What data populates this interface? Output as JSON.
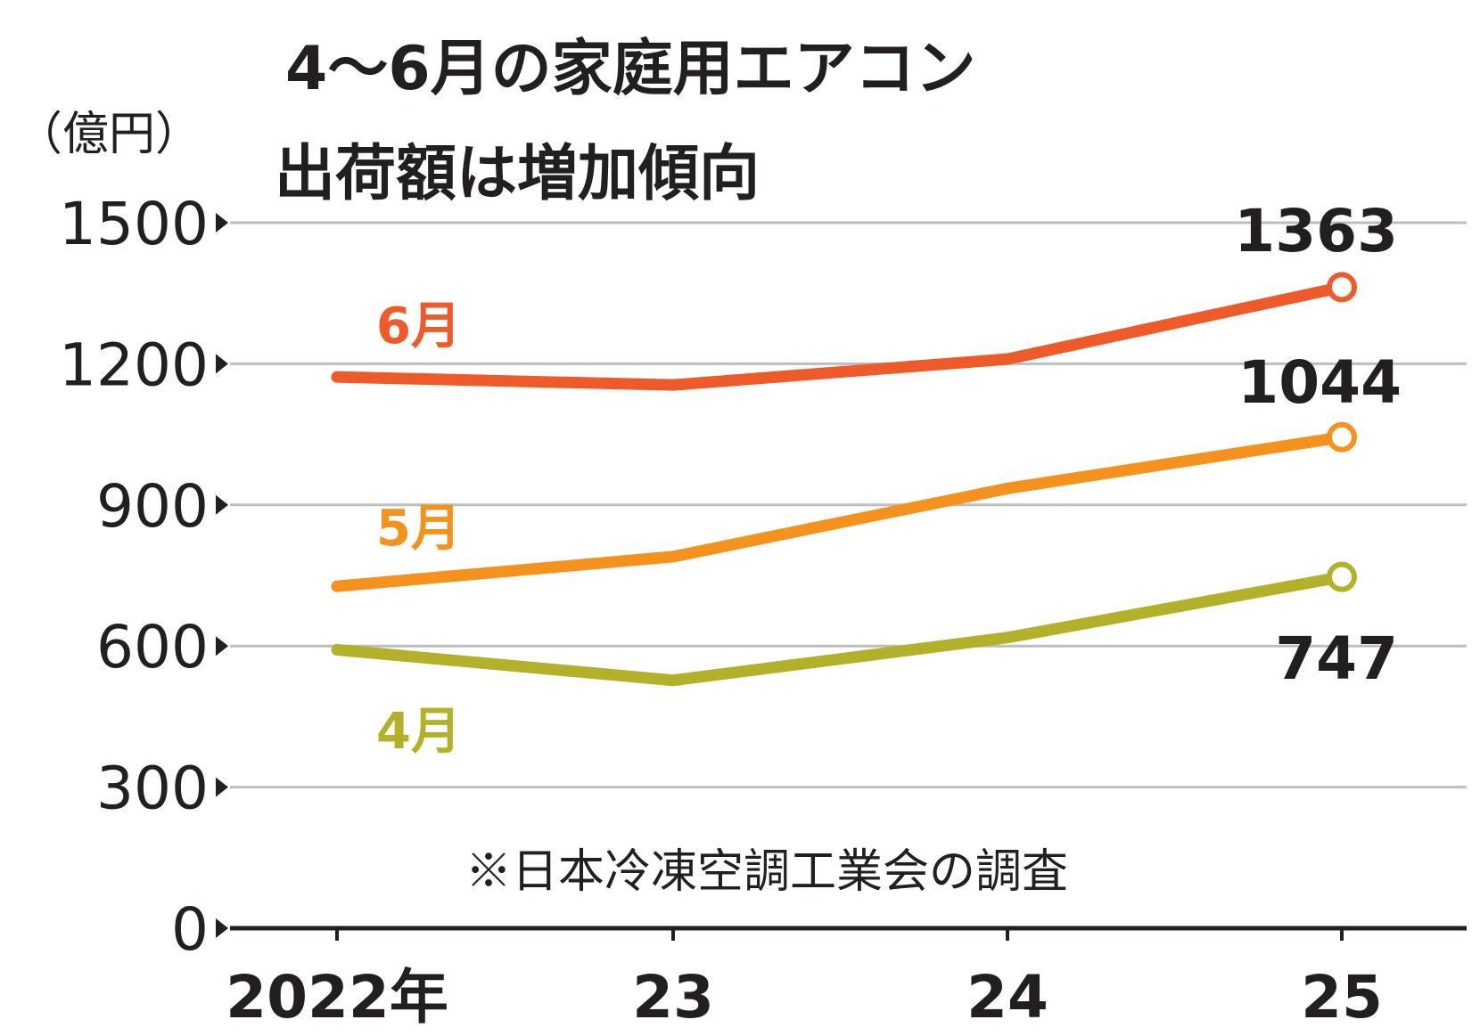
{
  "chart_data": {
    "type": "line",
    "title": "4～6月の家庭用エアコン",
    "subtitle": "出荷額は増加傾向",
    "unit_label": "（億円）",
    "x": [
      "2022年",
      "23",
      "24",
      "25"
    ],
    "ylim": [
      0,
      1500
    ],
    "yticks": [
      "0",
      "300",
      "600",
      "900",
      "1200",
      "1500"
    ],
    "grid": true,
    "note": "※日本冷凍空調工業会の調査",
    "series": [
      {
        "name": "6月",
        "values": [
          1172,
          1155,
          1210,
          1363
        ],
        "color": "#ee5a2a",
        "end_label": "1363"
      },
      {
        "name": "5月",
        "values": [
          727,
          790,
          935,
          1044
        ],
        "color": "#f5921e",
        "end_label": "1044"
      },
      {
        "name": "4月",
        "values": [
          592,
          527,
          618,
          747
        ],
        "color": "#b3b12a",
        "end_label": "747"
      }
    ],
    "colors": {
      "axis": "#231f20",
      "grid": "#bcbec0"
    }
  }
}
